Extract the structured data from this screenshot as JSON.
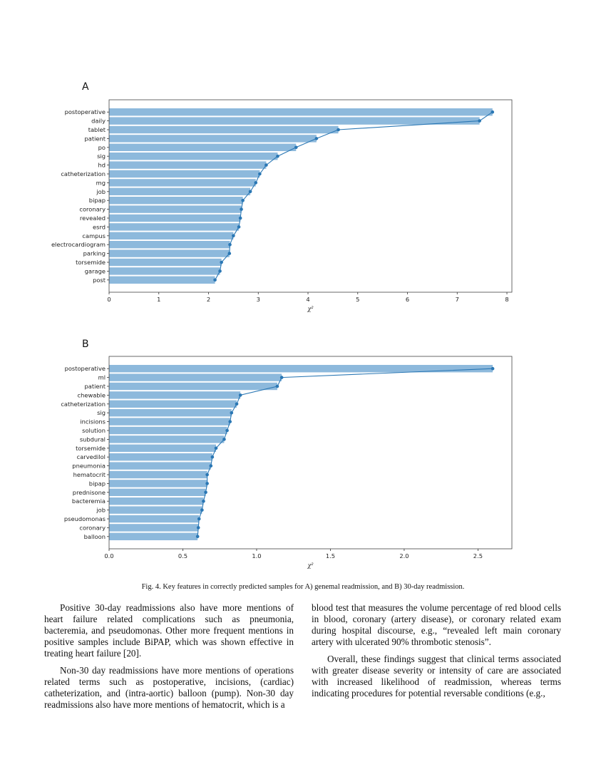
{
  "caption": "Fig. 4.   Key features in correctly predicted samples for A) genemal readmission, and B) 30-day readmission.",
  "bar_color": "#8db9dc",
  "line_color": "#2a77b4",
  "chart_data": [
    {
      "panel_label": "A",
      "type": "bar",
      "orientation": "horizontal",
      "categories": [
        "postoperative",
        "daily",
        "tablet",
        "patient",
        "po",
        "sig",
        "hd",
        "catheterization",
        "mg",
        "job",
        "bipap",
        "coronary",
        "revealed",
        "esrd",
        "campus",
        "electrocardiogram",
        "parking",
        "torsemide",
        "garage",
        "post"
      ],
      "values": [
        7.71,
        7.45,
        4.61,
        4.17,
        3.76,
        3.39,
        3.16,
        3.03,
        2.95,
        2.84,
        2.69,
        2.66,
        2.64,
        2.61,
        2.5,
        2.43,
        2.42,
        2.26,
        2.23,
        2.13
      ],
      "xlabel": "χ²",
      "xlim": [
        0,
        8.1
      ],
      "xticks": [
        "0",
        "1",
        "2",
        "3",
        "4",
        "5",
        "6",
        "7",
        "8"
      ],
      "xtick_values": [
        0,
        1,
        2,
        3,
        4,
        5,
        6,
        7,
        8
      ],
      "overlay": "line with markers through bar ends",
      "grid": false
    },
    {
      "panel_label": "B",
      "type": "bar",
      "orientation": "horizontal",
      "categories": [
        "postoperative",
        "ml",
        "patient",
        "chewable",
        "catheterization",
        "sig",
        "incisions",
        "solution",
        "subdural",
        "torsemide",
        "carvedilol",
        "pneumonia",
        "hematocrit",
        "bipap",
        "prednisone",
        "bacteremia",
        "job",
        "pseudomonas",
        "coronary",
        "balloon"
      ],
      "values": [
        2.6,
        1.17,
        1.14,
        0.89,
        0.865,
        0.83,
        0.82,
        0.8,
        0.78,
        0.725,
        0.7,
        0.69,
        0.665,
        0.665,
        0.655,
        0.64,
        0.63,
        0.61,
        0.605,
        0.6
      ],
      "xlabel": "χ²",
      "xlim": [
        0,
        2.73
      ],
      "xticks": [
        "0.0",
        "0.5",
        "1.0",
        "1.5",
        "2.0",
        "2.5"
      ],
      "xtick_values": [
        0,
        0.5,
        1.0,
        1.5,
        2.0,
        2.5
      ],
      "overlay": "line with markers through bar ends",
      "grid": false
    }
  ],
  "left_column": [
    "Positive 30-day readmissions also have more mentions of heart failure related complications such as pneumonia, bacteremia, and pseudomonas. Other more frequent mentions in positive samples include BiPAP, which was shown effective in treating heart failure [20].",
    "Non-30 day readmissions have more mentions of operations related terms such as postoperative, incisions, (cardiac) catheterization, and (intra-aortic) balloon (pump). Non-30 day readmissions also have more mentions of hematocrit, which is a"
  ],
  "right_column": [
    "blood test that measures the volume percentage of red blood cells in blood, coronary (artery disease), or coronary related exam during hospital discourse, e.g., “revealed left main coronary artery with ulcerated 90% thrombotic stenosis”.",
    "Overall, these findings suggest that clinical terms associated with greater disease severity or intensity of care are associated with increased likelihood of readmission, whereas terms indicating procedures for potential reversable conditions (e.g.,"
  ]
}
